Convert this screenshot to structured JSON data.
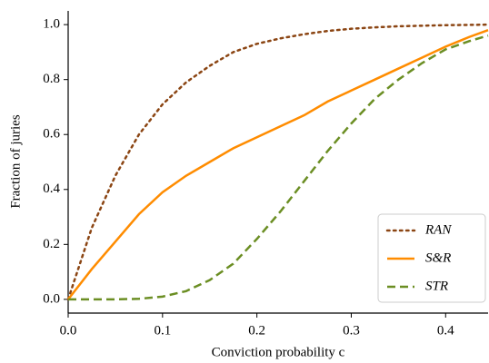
{
  "chart_data": {
    "type": "line",
    "xlabel": "Conviction probability c",
    "ylabel": "Fraction of juries",
    "x": [
      0,
      0.025,
      0.05,
      0.075,
      0.1,
      0.125,
      0.15,
      0.175,
      0.2,
      0.225,
      0.25,
      0.275,
      0.3,
      0.325,
      0.35,
      0.375,
      0.4,
      0.425,
      0.445
    ],
    "series": [
      {
        "name": "RAN",
        "color": "#8b4513",
        "dash": "dotted",
        "values": [
          0,
          0.26,
          0.45,
          0.6,
          0.71,
          0.79,
          0.85,
          0.9,
          0.93,
          0.95,
          0.965,
          0.977,
          0.985,
          0.99,
          0.994,
          0.996,
          0.998,
          0.999,
          1.0
        ]
      },
      {
        "name": "S&R",
        "color": "#ff8c00",
        "dash": "solid",
        "values": [
          0,
          0.11,
          0.21,
          0.31,
          0.39,
          0.45,
          0.5,
          0.55,
          0.59,
          0.63,
          0.67,
          0.72,
          0.76,
          0.8,
          0.84,
          0.88,
          0.92,
          0.955,
          0.98
        ]
      },
      {
        "name": "STR",
        "color": "#6b8e23",
        "dash": "dashed",
        "values": [
          0,
          0,
          0,
          0.002,
          0.01,
          0.03,
          0.07,
          0.13,
          0.22,
          0.32,
          0.43,
          0.54,
          0.64,
          0.73,
          0.8,
          0.86,
          0.91,
          0.94,
          0.96
        ]
      }
    ],
    "xlim": [
      0,
      0.445
    ],
    "ylim": [
      -0.05,
      1.05
    ],
    "xticks": [
      {
        "value": 0,
        "label": "0.0"
      },
      0.1,
      0.2,
      0.3,
      0.4
    ],
    "yticks": [
      {
        "value": 0,
        "label": "0.0"
      },
      0.2,
      0.4,
      0.6,
      0.8,
      {
        "value": 1,
        "label": "1.0"
      }
    ],
    "legend": "lower right"
  }
}
